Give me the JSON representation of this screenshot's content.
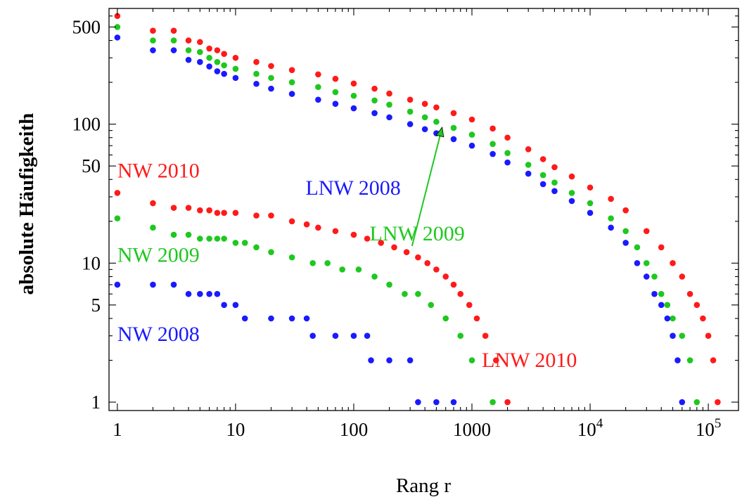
{
  "chart_data": {
    "type": "scatter",
    "title": "",
    "xlabel": "Rang r",
    "ylabel": "absolute Häufigkeith",
    "x_scale": "log",
    "y_scale": "log",
    "xlim": [
      0.85,
      180000
    ],
    "ylim": [
      0.87,
      680
    ],
    "grid": false,
    "legend": "none",
    "x_ticks": [
      {
        "value": 1,
        "label": "1"
      },
      {
        "value": 10,
        "label": "10"
      },
      {
        "value": 100,
        "label": "100"
      },
      {
        "value": 1000,
        "label": "1000"
      },
      {
        "value": 10000,
        "label": "10",
        "exponent": "4"
      },
      {
        "value": 100000,
        "label": "10",
        "exponent": "5"
      }
    ],
    "y_ticks": [
      {
        "value": 1,
        "label": "1"
      },
      {
        "value": 5,
        "label": "5"
      },
      {
        "value": 10,
        "label": "10"
      },
      {
        "value": 50,
        "label": "50"
      },
      {
        "value": 100,
        "label": "100"
      },
      {
        "value": 500,
        "label": "500"
      }
    ],
    "series": [
      {
        "name": "LNW 2010",
        "color": "#ff1a1a",
        "label_side": "end",
        "points": [
          [
            1,
            600
          ],
          [
            2,
            470
          ],
          [
            3,
            470
          ],
          [
            4,
            400
          ],
          [
            5,
            390
          ],
          [
            6,
            350
          ],
          [
            7,
            340
          ],
          [
            8,
            320
          ],
          [
            10,
            300
          ],
          [
            15,
            280
          ],
          [
            20,
            262
          ],
          [
            30,
            245
          ],
          [
            50,
            228
          ],
          [
            70,
            212
          ],
          [
            100,
            196
          ],
          [
            150,
            180
          ],
          [
            200,
            166
          ],
          [
            300,
            150
          ],
          [
            400,
            140
          ],
          [
            500,
            132
          ],
          [
            700,
            120
          ],
          [
            1000,
            108
          ],
          [
            1500,
            93
          ],
          [
            2000,
            80
          ],
          [
            3000,
            66
          ],
          [
            4000,
            56
          ],
          [
            5000,
            49
          ],
          [
            7000,
            42
          ],
          [
            10000,
            35
          ],
          [
            15000,
            29
          ],
          [
            20000,
            24
          ],
          [
            30000,
            17
          ],
          [
            40000,
            13
          ],
          [
            50000,
            10
          ],
          [
            60000,
            8
          ],
          [
            70000,
            6
          ],
          [
            80000,
            5
          ],
          [
            90000,
            4
          ],
          [
            100000,
            3
          ],
          [
            110000,
            2
          ],
          [
            120000,
            1
          ]
        ]
      },
      {
        "name": "LNW 2009",
        "color": "#1ec81e",
        "label_side": "end",
        "points": [
          [
            1,
            500
          ],
          [
            2,
            400
          ],
          [
            3,
            400
          ],
          [
            4,
            340
          ],
          [
            5,
            330
          ],
          [
            6,
            300
          ],
          [
            7,
            280
          ],
          [
            8,
            265
          ],
          [
            10,
            250
          ],
          [
            15,
            230
          ],
          [
            20,
            215
          ],
          [
            30,
            200
          ],
          [
            50,
            185
          ],
          [
            70,
            170
          ],
          [
            100,
            160
          ],
          [
            150,
            148
          ],
          [
            200,
            138
          ],
          [
            300,
            123
          ],
          [
            400,
            112
          ],
          [
            500,
            104
          ],
          [
            700,
            94
          ],
          [
            1000,
            84
          ],
          [
            1500,
            72
          ],
          [
            2000,
            62
          ],
          [
            3000,
            51
          ],
          [
            4000,
            43
          ],
          [
            5000,
            38
          ],
          [
            7000,
            32
          ],
          [
            10000,
            27
          ],
          [
            15000,
            21
          ],
          [
            20000,
            17
          ],
          [
            25000,
            13
          ],
          [
            30000,
            10
          ],
          [
            35000,
            8
          ],
          [
            40000,
            6
          ],
          [
            45000,
            5
          ],
          [
            50000,
            4
          ],
          [
            60000,
            3
          ],
          [
            70000,
            2
          ],
          [
            80000,
            1
          ]
        ]
      },
      {
        "name": "LNW 2008",
        "color": "#1a1aff",
        "label_side": "end",
        "points": [
          [
            1,
            420
          ],
          [
            2,
            340
          ],
          [
            3,
            340
          ],
          [
            4,
            290
          ],
          [
            5,
            280
          ],
          [
            6,
            260
          ],
          [
            7,
            240
          ],
          [
            8,
            230
          ],
          [
            10,
            215
          ],
          [
            15,
            195
          ],
          [
            20,
            180
          ],
          [
            30,
            165
          ],
          [
            50,
            150
          ],
          [
            70,
            140
          ],
          [
            100,
            130
          ],
          [
            150,
            120
          ],
          [
            200,
            112
          ],
          [
            300,
            100
          ],
          [
            400,
            92
          ],
          [
            500,
            86
          ],
          [
            700,
            78
          ],
          [
            1000,
            70
          ],
          [
            1500,
            61
          ],
          [
            2000,
            53
          ],
          [
            3000,
            44
          ],
          [
            4000,
            37
          ],
          [
            5000,
            33
          ],
          [
            7000,
            28
          ],
          [
            10000,
            23
          ],
          [
            15000,
            18
          ],
          [
            20000,
            14
          ],
          [
            25000,
            10
          ],
          [
            30000,
            8
          ],
          [
            35000,
            6
          ],
          [
            40000,
            5
          ],
          [
            45000,
            4
          ],
          [
            50000,
            3
          ],
          [
            55000,
            2
          ],
          [
            60000,
            1
          ]
        ]
      },
      {
        "name": "NW 2010",
        "color": "#ff1a1a",
        "label_side": "start",
        "points": [
          [
            1,
            32
          ],
          [
            2,
            27
          ],
          [
            3,
            25
          ],
          [
            4,
            25
          ],
          [
            5,
            24
          ],
          [
            6,
            24
          ],
          [
            7,
            23
          ],
          [
            8,
            23
          ],
          [
            10,
            23
          ],
          [
            15,
            22
          ],
          [
            20,
            22
          ],
          [
            30,
            20
          ],
          [
            40,
            19
          ],
          [
            50,
            18
          ],
          [
            70,
            17
          ],
          [
            100,
            16
          ],
          [
            130,
            15
          ],
          [
            170,
            14
          ],
          [
            220,
            13
          ],
          [
            280,
            12
          ],
          [
            350,
            11
          ],
          [
            420,
            10
          ],
          [
            500,
            9
          ],
          [
            600,
            8
          ],
          [
            700,
            7
          ],
          [
            800,
            6
          ],
          [
            950,
            5
          ],
          [
            1100,
            4
          ],
          [
            1300,
            3
          ],
          [
            1600,
            2
          ],
          [
            2000,
            1
          ]
        ]
      },
      {
        "name": "NW 2009",
        "color": "#1ec81e",
        "label_side": "start",
        "points": [
          [
            1,
            21
          ],
          [
            2,
            18
          ],
          [
            3,
            16
          ],
          [
            4,
            16
          ],
          [
            5,
            15
          ],
          [
            6,
            15
          ],
          [
            7,
            15
          ],
          [
            8,
            15
          ],
          [
            10,
            14
          ],
          [
            12,
            14
          ],
          [
            15,
            13
          ],
          [
            20,
            12
          ],
          [
            30,
            11
          ],
          [
            45,
            10
          ],
          [
            60,
            10
          ],
          [
            80,
            9
          ],
          [
            110,
            9
          ],
          [
            150,
            8
          ],
          [
            200,
            7
          ],
          [
            270,
            6
          ],
          [
            350,
            6
          ],
          [
            450,
            5
          ],
          [
            600,
            4
          ],
          [
            800,
            3
          ],
          [
            1000,
            2
          ],
          [
            1500,
            1
          ]
        ]
      },
      {
        "name": "NW 2008",
        "color": "#1a1aff",
        "label_side": "start",
        "points": [
          [
            1,
            7
          ],
          [
            2,
            7
          ],
          [
            3,
            7
          ],
          [
            4,
            6
          ],
          [
            5,
            6
          ],
          [
            6,
            6
          ],
          [
            7,
            6
          ],
          [
            8,
            5
          ],
          [
            10,
            5
          ],
          [
            12,
            4
          ],
          [
            20,
            4
          ],
          [
            30,
            4
          ],
          [
            40,
            4
          ],
          [
            45,
            3
          ],
          [
            70,
            3
          ],
          [
            100,
            3
          ],
          [
            130,
            3
          ],
          [
            140,
            2
          ],
          [
            200,
            2
          ],
          [
            300,
            2
          ],
          [
            350,
            1
          ],
          [
            500,
            1
          ],
          [
            700,
            1
          ]
        ]
      }
    ],
    "annotations": [
      {
        "text": "LNW 2009",
        "color": "#1ec81e",
        "series": "LNW 2009",
        "arrow_to": [
          560,
          95
        ]
      }
    ]
  }
}
